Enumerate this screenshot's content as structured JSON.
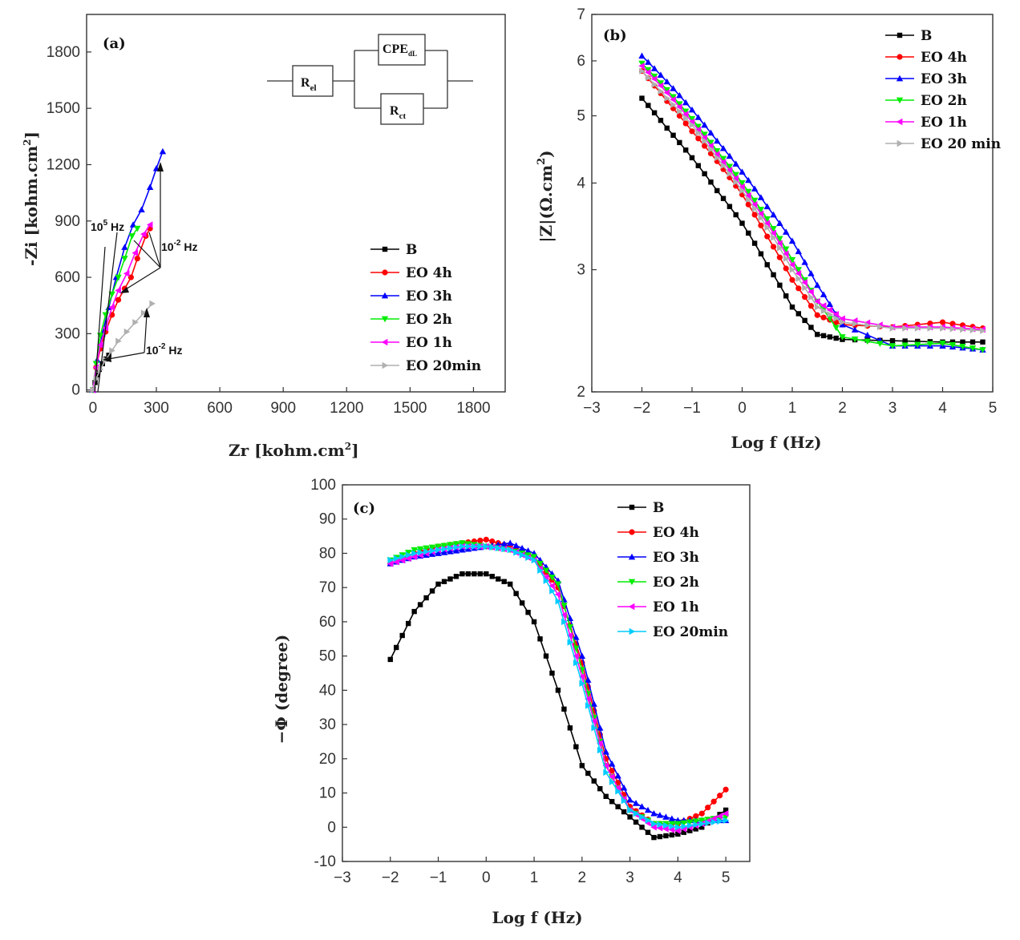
{
  "colors": {
    "B": "#000000",
    "EO 4h": "#ff0000",
    "EO 3h": "#0000ff",
    "EO 2h": "#00ee00",
    "EO 1h": "#ff00ff",
    "EO 20min": "#b0b0b0",
    "EO 20min c": "#00ccff"
  },
  "chart_data": [
    {
      "panel": "(a)",
      "type": "scatter",
      "xlabel": "Zr [kohm.cm",
      "xlabel_sup": "2",
      "xlabel_end": "]",
      "ylabel": "-Zi [kohm.cm",
      "ylabel_sup": "2",
      "ylabel_end": "]",
      "xlim": [
        -30,
        1950
      ],
      "ylim": [
        -10,
        2000
      ],
      "xticks": [
        0,
        300,
        600,
        900,
        1200,
        1500,
        1800
      ],
      "yticks": [
        0,
        300,
        600,
        900,
        1200,
        1500,
        1800
      ],
      "legend": [
        "B",
        "EO 4h",
        "EO 3h",
        "EO 2h",
        "EO 1h",
        "EO 20min"
      ],
      "legend_position": "right-middle",
      "annotations": [
        {
          "base": "10",
          "sup": "5",
          "unit": " Hz"
        },
        {
          "base": "10",
          "sup": "-2",
          "unit": " Hz"
        },
        {
          "base": "10",
          "sup": "-2",
          "unit": " Hz"
        }
      ],
      "circuit": {
        "r1": "R",
        "r1_sub": "el",
        "cpe": "CPE",
        "cpe_sub": "dL",
        "r2": "R",
        "r2_sub": "ct"
      },
      "series": [
        {
          "name": "B",
          "x": [
            0,
            10,
            20,
            30,
            45,
            60,
            75
          ],
          "y": [
            0,
            40,
            80,
            110,
            140,
            165,
            185
          ]
        },
        {
          "name": "EO 4h",
          "x": [
            0,
            15,
            35,
            60,
            90,
            120,
            150,
            180,
            210,
            250,
            270
          ],
          "y": [
            0,
            120,
            220,
            310,
            400,
            480,
            540,
            600,
            700,
            820,
            860
          ]
        },
        {
          "name": "EO 3h",
          "x": [
            0,
            20,
            45,
            75,
            110,
            150,
            190,
            230,
            270,
            300,
            330
          ],
          "y": [
            0,
            160,
            300,
            440,
            600,
            760,
            880,
            960,
            1080,
            1180,
            1270
          ]
        },
        {
          "name": "EO 2h",
          "x": [
            0,
            15,
            35,
            60,
            90,
            120,
            150,
            185,
            210
          ],
          "y": [
            0,
            140,
            290,
            400,
            510,
            600,
            700,
            820,
            860
          ]
        },
        {
          "name": "EO 1h",
          "x": [
            0,
            15,
            35,
            60,
            90,
            120,
            160,
            200,
            240,
            270
          ],
          "y": [
            0,
            120,
            240,
            330,
            440,
            530,
            620,
            730,
            830,
            880
          ]
        },
        {
          "name": "EO 20min",
          "x": [
            0,
            15,
            35,
            60,
            90,
            120,
            160,
            200,
            240,
            280
          ],
          "y": [
            0,
            60,
            110,
            160,
            210,
            260,
            310,
            360,
            410,
            460
          ]
        }
      ]
    },
    {
      "panel": "(b)",
      "type": "line",
      "xlabel": "Log f (Hz)",
      "ylabel": "|Z|(Ω.cm",
      "ylabel_sup": "2",
      "ylabel_end": ")",
      "xlim": [
        -3,
        5
      ],
      "ylim": [
        2,
        7
      ],
      "yscale": "log",
      "xticks": [
        "−3",
        "−2",
        "−1",
        "0",
        "1",
        "2",
        "3",
        "4",
        "5"
      ],
      "yticks": [
        2,
        3,
        4,
        5,
        6,
        7
      ],
      "legend": [
        "B",
        "EO 4h",
        "EO 3h",
        "EO 2h",
        "EO 1h",
        "EO 20 min"
      ],
      "legend_position": "top-right",
      "series": [
        {
          "name": "B",
          "x": [
            -2,
            -1.5,
            -1,
            -0.5,
            0,
            0.5,
            1,
            1.5,
            2,
            3,
            4,
            4.8
          ],
          "y": [
            5.3,
            4.8,
            4.35,
            3.9,
            3.5,
            3.05,
            2.65,
            2.42,
            2.38,
            2.37,
            2.36,
            2.36
          ]
        },
        {
          "name": "EO 4h",
          "x": [
            -2,
            -1.5,
            -1,
            -0.5,
            0,
            0.5,
            1,
            1.5,
            2,
            3,
            4,
            4.8
          ],
          "y": [
            5.8,
            5.25,
            4.75,
            4.3,
            3.85,
            3.35,
            2.9,
            2.58,
            2.5,
            2.48,
            2.52,
            2.47
          ]
        },
        {
          "name": "EO 3h",
          "x": [
            -2,
            -1.5,
            -1,
            -0.5,
            0,
            0.5,
            1,
            1.5,
            2,
            3,
            4,
            4.8
          ],
          "y": [
            6.1,
            5.6,
            5.1,
            4.6,
            4.15,
            3.7,
            3.3,
            2.85,
            2.5,
            2.33,
            2.33,
            2.3
          ]
        },
        {
          "name": "EO 2h",
          "x": [
            -2,
            -1.5,
            -1,
            -0.5,
            0,
            0.5,
            1,
            1.5,
            2,
            3,
            4,
            4.8
          ],
          "y": [
            5.95,
            5.45,
            4.95,
            4.45,
            4.0,
            3.55,
            3.1,
            2.7,
            2.4,
            2.33,
            2.35,
            2.3
          ]
        },
        {
          "name": "EO 1h",
          "x": [
            -2,
            -1.5,
            -1,
            -0.5,
            0,
            0.5,
            1,
            1.5,
            2,
            3,
            4,
            4.8
          ],
          "y": [
            5.9,
            5.4,
            4.9,
            4.4,
            3.95,
            3.5,
            3.05,
            2.7,
            2.55,
            2.48,
            2.48,
            2.46
          ]
        },
        {
          "name": "EO 20 min",
          "x": [
            -2,
            -1.5,
            -1,
            -0.5,
            0,
            0.5,
            1,
            1.5,
            2,
            3,
            4,
            4.8
          ],
          "y": [
            5.8,
            5.3,
            4.85,
            4.35,
            3.9,
            3.45,
            3.0,
            2.65,
            2.52,
            2.47,
            2.47,
            2.45
          ]
        }
      ]
    },
    {
      "panel": "(c)",
      "type": "line",
      "xlabel": "Log f (Hz)",
      "ylabel": "−Φ (degree)",
      "xlim": [
        -3,
        5.5
      ],
      "ylim": [
        -10,
        100
      ],
      "xticks": [
        "−3",
        "−2",
        "−1",
        "0",
        "1",
        "2",
        "3",
        "4",
        "5"
      ],
      "yticks": [
        -10,
        0,
        10,
        20,
        30,
        40,
        50,
        60,
        70,
        80,
        90,
        100
      ],
      "legend": [
        "B",
        "EO 4h",
        "EO 3h",
        "EO 2h",
        "EO 1h",
        "EO 20min"
      ],
      "legend_position": "top-right",
      "series": [
        {
          "name": "B",
          "x": [
            -2,
            -1.5,
            -1,
            -0.5,
            0,
            0.5,
            1,
            1.5,
            2,
            2.5,
            3,
            3.5,
            4,
            4.5,
            5
          ],
          "y": [
            49,
            63,
            71,
            74,
            74,
            71,
            60,
            40,
            18,
            9,
            3,
            -3,
            -2,
            0,
            5
          ]
        },
        {
          "name": "EO 4h",
          "x": [
            -2,
            -1.5,
            -1,
            -0.5,
            0,
            0.5,
            1,
            1.5,
            2,
            2.5,
            3,
            3.5,
            4,
            4.5,
            5
          ],
          "y": [
            77,
            80,
            82,
            83,
            84,
            82,
            79,
            70,
            48,
            20,
            6,
            1,
            1,
            4,
            11
          ]
        },
        {
          "name": "EO 3h",
          "x": [
            -2,
            -1.5,
            -1,
            -0.5,
            0,
            0.5,
            1,
            1.5,
            2,
            2.5,
            3,
            3.5,
            4,
            4.5,
            5
          ],
          "y": [
            77,
            79,
            80,
            81,
            82,
            83,
            80,
            72,
            50,
            22,
            8,
            4,
            2,
            2,
            2
          ]
        },
        {
          "name": "EO 2h",
          "x": [
            -2,
            -1.5,
            -1,
            -0.5,
            0,
            0.5,
            1,
            1.5,
            2,
            2.5,
            3,
            3.5,
            4,
            4.5,
            5
          ],
          "y": [
            78,
            81,
            82,
            83,
            82,
            81,
            79,
            71,
            46,
            18,
            5,
            1,
            1,
            2,
            3
          ]
        },
        {
          "name": "EO 1h",
          "x": [
            -2,
            -1.5,
            -1,
            -0.5,
            0,
            0.5,
            1,
            1.5,
            2,
            2.5,
            3,
            3.5,
            4,
            4.5,
            5
          ],
          "y": [
            77,
            79,
            81,
            82,
            82,
            81,
            78,
            68,
            44,
            18,
            5,
            0,
            -1,
            1,
            4
          ]
        },
        {
          "name": "EO 20min",
          "x": [
            -2,
            -1.5,
            -1,
            -0.5,
            0,
            0.5,
            1,
            1.5,
            2,
            2.5,
            3,
            3.5,
            4,
            4.5,
            5
          ],
          "y": [
            78,
            80,
            81,
            82,
            82,
            81,
            78,
            66,
            42,
            16,
            5,
            1,
            0,
            1,
            2
          ]
        }
      ]
    }
  ]
}
